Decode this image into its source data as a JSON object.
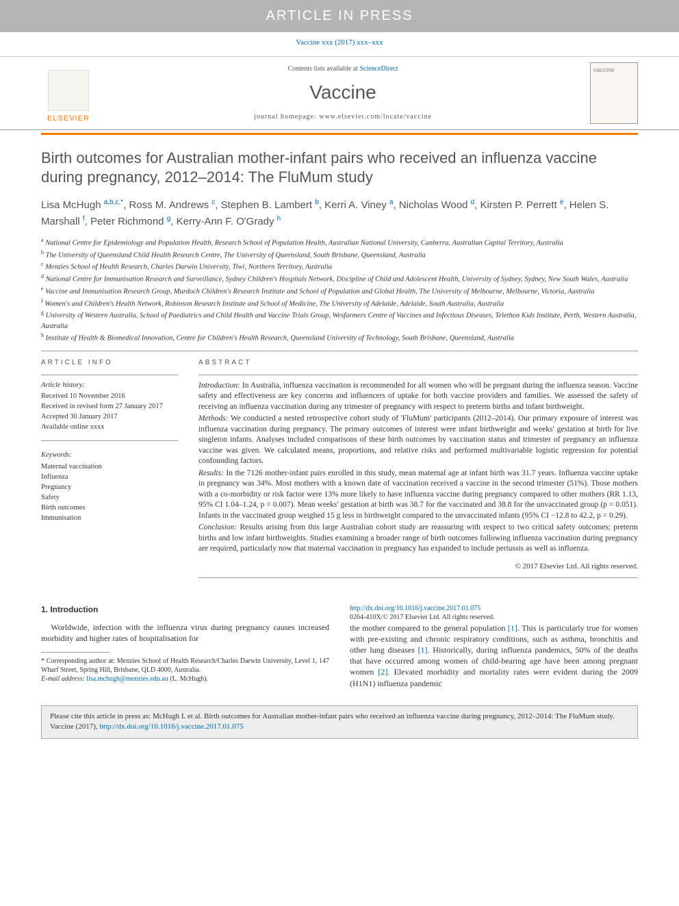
{
  "banner": {
    "text": "ARTICLE IN PRESS"
  },
  "citation_top": "Vaccine xxx (2017) xxx–xxx",
  "header": {
    "contents_prefix": "Contents lists available at ",
    "sciencedirect": "ScienceDirect",
    "journal_name": "Vaccine",
    "homepage_prefix": "journal homepage: ",
    "homepage_url": "www.elsevier.com/locate/vaccine",
    "elsevier_label": "ELSEVIER",
    "cover_text": "vaccine"
  },
  "title": "Birth outcomes for Australian mother-infant pairs who received an influenza vaccine during pregnancy, 2012–2014: The FluMum study",
  "authors_html": "Lisa McHugh <sup>a,b,c,*</sup>, Ross M. Andrews <sup>c</sup>, Stephen B. Lambert <sup>b</sup>, Kerri A. Viney <sup>a</sup>, Nicholas Wood <sup>d</sup>, Kirsten P. Perrett <sup>e</sup>, Helen S. Marshall <sup>f</sup>, Peter Richmond <sup>g</sup>, Kerry-Ann F. O'Grady <sup>h</sup>",
  "affiliations": [
    {
      "sup": "a",
      "text": "National Centre for Epidemiology and Population Health, Research School of Population Health, Australian National University, Canberra, Australian Capital Territory, Australia"
    },
    {
      "sup": "b",
      "text": "The University of Queensland Child Health Research Centre, The University of Queensland, South Brisbane, Queensland, Australia"
    },
    {
      "sup": "c",
      "text": "Menzies School of Health Research, Charles Darwin University, Tiwi, Northern Territory, Australia"
    },
    {
      "sup": "d",
      "text": "National Centre for Immunisation Research and Surveillance, Sydney Children's Hospitals Network, Discipline of Child and Adolescent Health, University of Sydney, Sydney, New South Wales, Australia"
    },
    {
      "sup": "e",
      "text": "Vaccine and Immunisation Research Group, Murdoch Children's Research Institute and School of Population and Global Health, The University of Melbourne, Melbourne, Victoria, Australia"
    },
    {
      "sup": "f",
      "text": "Women's and Children's Health Network, Robinson Research Institute and School of Medicine, The University of Adelaide, Adelaide, South Australia, Australia"
    },
    {
      "sup": "g",
      "text": "University of Western Australia, School of Paediatrics and Child Health and Vaccine Trials Group, Wesfarmers Centre of Vaccines and Infectious Diseases, Telethon Kids Institute, Perth, Western Australia, Australia"
    },
    {
      "sup": "h",
      "text": "Institute of Health & Biomedical Innovation, Centre for Children's Health Research, Queensland University of Technology, South Brisbane, Queensland, Australia"
    }
  ],
  "article_info": {
    "label": "ARTICLE INFO",
    "history_label": "Article history:",
    "history": [
      "Received 10 November 2016",
      "Received in revised form 27 January 2017",
      "Accepted 30 January 2017",
      "Available online xxxx"
    ],
    "keywords_label": "Keywords:",
    "keywords": [
      "Maternal vaccination",
      "Influenza",
      "Pregnancy",
      "Safety",
      "Birth outcomes",
      "Immunisation"
    ]
  },
  "abstract": {
    "label": "ABSTRACT",
    "paras": [
      {
        "lead": "Introduction:",
        "text": " In Australia, influenza vaccination is recommended for all women who will be pregnant during the influenza season. Vaccine safety and effectiveness are key concerns and influencers of uptake for both vaccine providers and families. We assessed the safety of receiving an influenza vaccination during any trimester of pregnancy with respect to preterm births and infant birthweight."
      },
      {
        "lead": "Methods:",
        "text": " We conducted a nested retrospective cohort study of 'FluMum' participants (2012–2014). Our primary exposure of interest was influenza vaccination during pregnancy. The primary outcomes of interest were infant birthweight and weeks' gestation at birth for live singleton infants. Analyses included comparisons of these birth outcomes by vaccination status and trimester of pregnancy an influenza vaccine was given. We calculated means, proportions, and relative risks and performed multivariable logistic regression for potential confounding factors."
      },
      {
        "lead": "Results:",
        "text": " In the 7126 mother-infant pairs enrolled in this study, mean maternal age at infant birth was 31.7 years. Influenza vaccine uptake in pregnancy was 34%. Most mothers with a known date of vaccination received a vaccine in the second trimester (51%). Those mothers with a co-morbidity or risk factor were 13% more likely to have influenza vaccine during pregnancy compared to other mothers (RR 1.13, 95% CI 1.04–1.24, p = 0.007). Mean weeks' gestation at birth was 38.7 for the vaccinated and 38.8 for the unvaccinated group (p = 0.051). Infants in the vaccinated group weighed 15 g less in birthweight compared to the unvaccinated infants (95% CI −12.8 to 42.2, p = 0.29)."
      },
      {
        "lead": "Conclusion:",
        "text": " Results arising from this large Australian cohort study are reassuring with respect to two critical safety outcomes; preterm births and low infant birthweights. Studies examining a broader range of birth outcomes following influenza vaccination during pregnancy are required, particularly now that maternal vaccination in pregnancy has expanded to include pertussis as well as influenza."
      }
    ],
    "copyright": "© 2017 Elsevier Ltd. All rights reserved."
  },
  "intro": {
    "heading": "1. Introduction",
    "col1_para": "Worldwide, infection with the influenza virus during pregnancy causes increased morbidity and higher rates of hospitalisation for",
    "footnote_corresp": "* Corresponding author at: Menzies School of Health Research/Charles Darwin University, Level 1, 147 Wharf Street, Spring Hill, Brisbane, QLD 4000, Australia.",
    "footnote_email_label": "E-mail address: ",
    "footnote_email": "lisa.mchugh@menzies.edu.au",
    "footnote_email_suffix": " (L. McHugh).",
    "col2_para": "the mother compared to the general population [1]. This is particularly true for women with pre-existing and chronic respiratory conditions, such as asthma, bronchitis and other lung diseases [1]. Historically, during influenza pandemics, 50% of the deaths that have occurred among women of child-bearing age have been among pregnant women [2]. Elevated morbidity and mortality rates were evident during the 2009 (H1N1) influenza pandemic"
  },
  "doi": {
    "url": "http://dx.doi.org/10.1016/j.vaccine.2017.01.075",
    "issn_line": "0264-410X/© 2017 Elsevier Ltd. All rights reserved."
  },
  "cite_box": {
    "text": "Please cite this article in press as: McHugh L et al. Birth outcomes for Australian mother-infant pairs who received an influenza vaccine during pregnancy, 2012–2014: The FluMum study. Vaccine (2017), ",
    "doi": "http://dx.doi.org/10.1016/j.vaccine.2017.01.075"
  },
  "colors": {
    "banner_bg": "#b5b5b5",
    "link": "#0066aa",
    "orange": "#ff7a00",
    "heading_gray": "#555555"
  }
}
